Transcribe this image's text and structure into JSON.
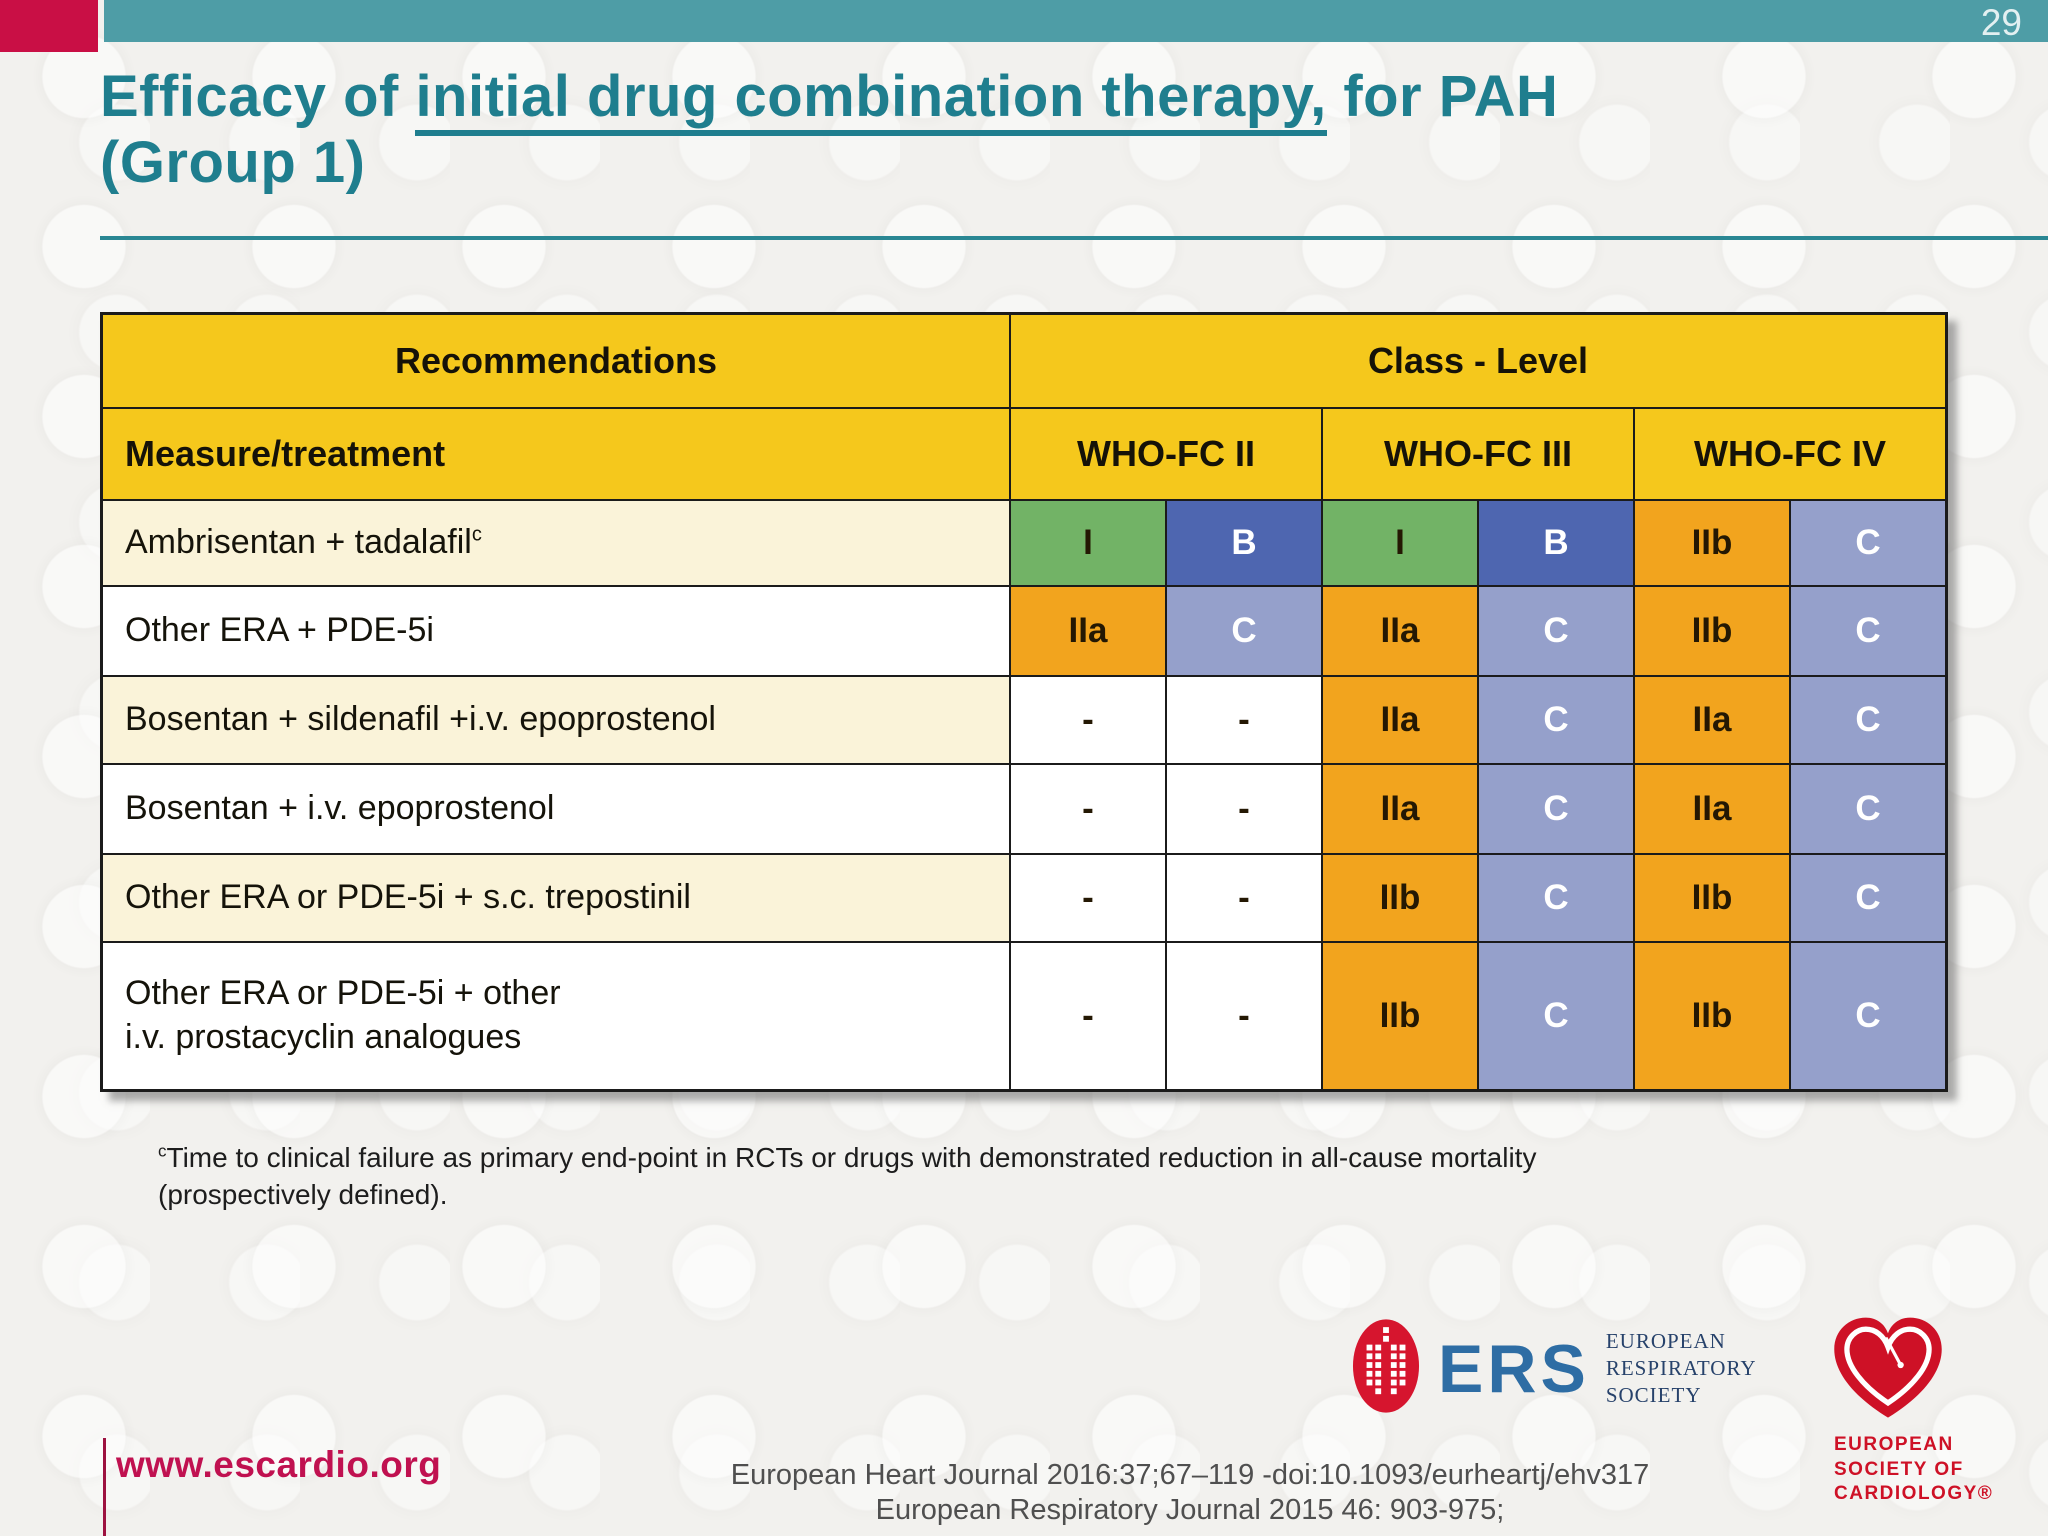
{
  "page": {
    "number": "29"
  },
  "title": {
    "pre": "Efficacy of ",
    "underlined": "initial drug combination therapy,",
    "post": " for PAH",
    "line2": "(Group 1)"
  },
  "table": {
    "header1": {
      "recommendations": "Recommendations",
      "class_level": "Class - Level"
    },
    "header2": {
      "measure": "Measure/treatment",
      "groups": [
        "WHO-FC II",
        "WHO-FC III",
        "WHO-FC IV"
      ]
    },
    "rows": [
      {
        "label": "Ambrisentan + tadalafil",
        "label_sup": "c",
        "label_bg": "cream",
        "cells": [
          {
            "t": "I",
            "bg": "green",
            "fg": "dark"
          },
          {
            "t": "B",
            "bg": "blue",
            "fg": "white"
          },
          {
            "t": "I",
            "bg": "green",
            "fg": "dark"
          },
          {
            "t": "B",
            "bg": "blue",
            "fg": "white"
          },
          {
            "t": "IIb",
            "bg": "orange",
            "fg": "dark"
          },
          {
            "t": "C",
            "bg": "lavender",
            "fg": "white"
          }
        ]
      },
      {
        "label": "Other ERA + PDE-5i",
        "label_bg": "white",
        "cells": [
          {
            "t": "IIa",
            "bg": "orange",
            "fg": "dark"
          },
          {
            "t": "C",
            "bg": "lavender",
            "fg": "white"
          },
          {
            "t": "IIa",
            "bg": "orange",
            "fg": "dark"
          },
          {
            "t": "C",
            "bg": "lavender",
            "fg": "white"
          },
          {
            "t": "IIb",
            "bg": "orange",
            "fg": "dark"
          },
          {
            "t": "C",
            "bg": "lavender",
            "fg": "white"
          }
        ]
      },
      {
        "label": "Bosentan + sildenafil +i.v. epoprostenol",
        "label_bg": "cream",
        "cells": [
          {
            "t": "-",
            "bg": "white",
            "fg": "dark"
          },
          {
            "t": "-",
            "bg": "white",
            "fg": "dark"
          },
          {
            "t": "IIa",
            "bg": "orange",
            "fg": "dark"
          },
          {
            "t": "C",
            "bg": "lavender",
            "fg": "white"
          },
          {
            "t": "IIa",
            "bg": "orange",
            "fg": "dark"
          },
          {
            "t": "C",
            "bg": "lavender",
            "fg": "white"
          }
        ]
      },
      {
        "label": "Bosentan + i.v. epoprostenol",
        "label_bg": "white",
        "cells": [
          {
            "t": "-",
            "bg": "white",
            "fg": "dark"
          },
          {
            "t": "-",
            "bg": "white",
            "fg": "dark"
          },
          {
            "t": "IIa",
            "bg": "orange",
            "fg": "dark"
          },
          {
            "t": "C",
            "bg": "lavender",
            "fg": "white"
          },
          {
            "t": "IIa",
            "bg": "orange",
            "fg": "dark"
          },
          {
            "t": "C",
            "bg": "lavender",
            "fg": "white"
          }
        ]
      },
      {
        "label": "Other ERA or PDE-5i + s.c. trepostinil",
        "label_bg": "cream",
        "cells": [
          {
            "t": "-",
            "bg": "white",
            "fg": "dark"
          },
          {
            "t": "-",
            "bg": "white",
            "fg": "dark"
          },
          {
            "t": "IIb",
            "bg": "orange",
            "fg": "dark"
          },
          {
            "t": "C",
            "bg": "lavender",
            "fg": "white"
          },
          {
            "t": "IIb",
            "bg": "orange",
            "fg": "dark"
          },
          {
            "t": "C",
            "bg": "lavender",
            "fg": "white"
          }
        ]
      },
      {
        "label": "Other ERA or PDE-5i + other",
        "label2": "i.v. prostacyclin analogues",
        "label_bg": "white",
        "cells": [
          {
            "t": "-",
            "bg": "white",
            "fg": "dark"
          },
          {
            "t": "-",
            "bg": "white",
            "fg": "dark"
          },
          {
            "t": "IIb",
            "bg": "orange",
            "fg": "dark"
          },
          {
            "t": "C",
            "bg": "lavender",
            "fg": "white"
          },
          {
            "t": "IIb",
            "bg": "orange",
            "fg": "dark"
          },
          {
            "t": "C",
            "bg": "lavender",
            "fg": "white"
          }
        ]
      }
    ]
  },
  "footnote": {
    "sup": "c",
    "text": "Time to clinical failure as primary end-point in RCTs or drugs with demonstrated reduction in all-cause mortality (prospectively defined)."
  },
  "footer": {
    "website": "www.escardio.org",
    "citation1": "European Heart Journal 2016:37;67–119 -doi:10.1093/eurheartj/ehv317",
    "citation2": "European Respiratory Journal 2015 46: 903-975;"
  },
  "logos": {
    "ers_abbr": "ERS",
    "ers_name_line1": "EUROPEAN",
    "ers_name_line2": "RESPIRATORY",
    "ers_name_line3": "SOCIETY",
    "esc_name_line1": "EUROPEAN",
    "esc_name_line2": "SOCIETY OF",
    "esc_name_line3": "CARDIOLOGY®"
  },
  "colors": {
    "teal_bar": "#4E9DA6",
    "crimson": "#C90F45",
    "title_teal": "#1F7E8E",
    "divider_teal": "#2A8793",
    "header_yellow": "#F5C81C",
    "row_cream": "#FAF3D9",
    "cell_green": "#72B366",
    "cell_blue": "#4E66B0",
    "cell_orange": "#F2A41E",
    "cell_lavender": "#95A0CB",
    "border_black": "#1B1B1B",
    "citation_gray": "#4F4F4F",
    "web_crimson": "#C01150",
    "ers_blue": "#2E6DA4",
    "ers_navy": "#27426B",
    "esc_red": "#CE1126"
  }
}
